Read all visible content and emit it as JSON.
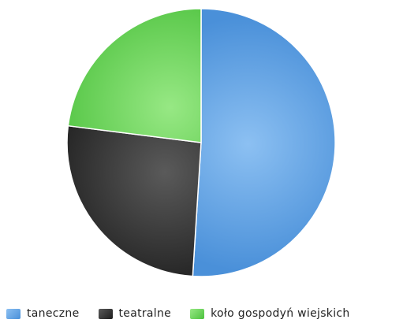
{
  "chart_data": {
    "type": "pie",
    "categories": [
      "taneczne",
      "teatralne",
      "koło gospodyń wiejskich"
    ],
    "values": [
      51,
      26,
      23
    ],
    "colors": [
      "#4a90d9",
      "#1c1c1c",
      "#4cc13d"
    ],
    "highlight_colors": [
      "#8cc0f2",
      "#5a5a5a",
      "#97e884"
    ],
    "start": "12 o'clock, clockwise",
    "legend_position": "bottom",
    "title": ""
  }
}
